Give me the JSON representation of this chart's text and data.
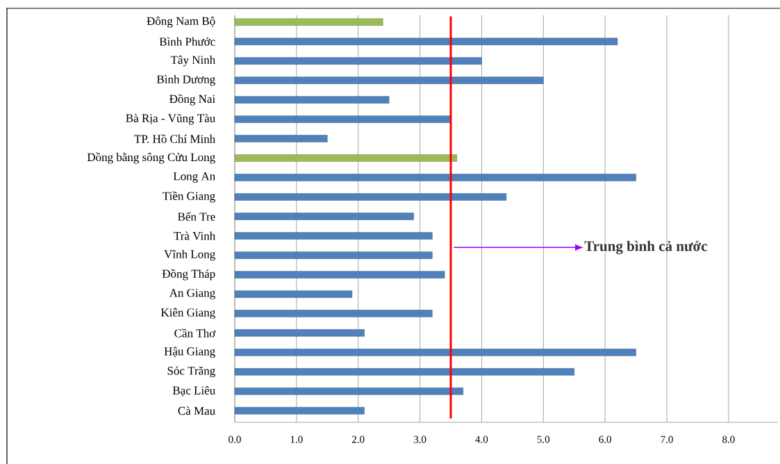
{
  "chart_data": {
    "type": "bar",
    "orientation": "horizontal",
    "categories": [
      "Đông Nam Bộ",
      "Bình Phước",
      "Tây Ninh",
      "Bình Dương",
      "Đồng Nai",
      "Bà Rịa - Vũng Tàu",
      "TP. Hồ Chí Minh",
      "Dồng bằng sông Cửu Long",
      "Long An",
      "Tiền Giang",
      "Bến Tre",
      "Trà Vinh",
      "Vĩnh Long",
      "Đồng Tháp",
      "An Giang",
      "Kiên Giang",
      "Cần Thơ",
      "Hậu Giang",
      "Sóc Trăng",
      "Bạc Liêu",
      "Cà Mau"
    ],
    "values": [
      2.4,
      6.2,
      4.0,
      5.0,
      2.5,
      3.5,
      1.5,
      3.6,
      6.5,
      4.4,
      2.9,
      3.2,
      3.2,
      3.4,
      1.9,
      3.2,
      2.1,
      6.5,
      5.5,
      3.7,
      2.1
    ],
    "colors": [
      "#9bbb59",
      "#4f81bd",
      "#4f81bd",
      "#4f81bd",
      "#4f81bd",
      "#4f81bd",
      "#4f81bd",
      "#9bbb59",
      "#4f81bd",
      "#4f81bd",
      "#4f81bd",
      "#4f81bd",
      "#4f81bd",
      "#4f81bd",
      "#4f81bd",
      "#4f81bd",
      "#4f81bd",
      "#4f81bd",
      "#4f81bd",
      "#4f81bd",
      "#4f81bd"
    ],
    "xlim": [
      0,
      8.8
    ],
    "xticks": [
      {
        "value": 0,
        "label": "0.0"
      },
      {
        "value": 1,
        "label": "1.0"
      },
      {
        "value": 2,
        "label": "2.0"
      },
      {
        "value": 3,
        "label": "3.0"
      },
      {
        "value": 4,
        "label": "4.0"
      },
      {
        "value": 5,
        "label": "5.0"
      },
      {
        "value": 6,
        "label": "6.0"
      },
      {
        "value": 7,
        "label": "7.0"
      },
      {
        "value": 8,
        "label": "8.0"
      }
    ],
    "grid": "x",
    "ref_lines": [
      {
        "axis": "x",
        "value": 3.5,
        "label": "Trung bình cả nước",
        "color": "#ff0000"
      }
    ]
  }
}
